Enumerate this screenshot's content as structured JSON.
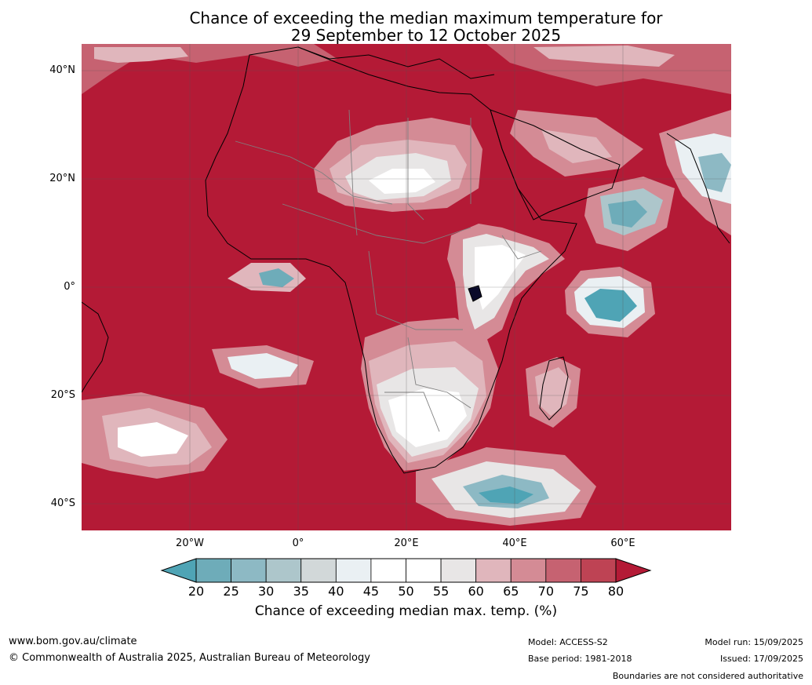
{
  "title_line1": "Chance of exceeding the median maximum temperature for",
  "title_line2": "29 September to 12 October 2025",
  "map": {
    "lat_labels": [
      "40°N",
      "20°N",
      "0°",
      "20°S",
      "40°S"
    ],
    "lon_labels": [
      "20°W",
      "0°",
      "20°E",
      "40°E",
      "60°E"
    ],
    "background_color": "#b41a36"
  },
  "colorbar": {
    "ticks": [
      "20",
      "25",
      "30",
      "35",
      "40",
      "45",
      "50",
      "55",
      "60",
      "65",
      "70",
      "75",
      "80"
    ],
    "colors": [
      "#4fa4b5",
      "#6eacb9",
      "#8db9c4",
      "#adc6cb",
      "#d2d8d9",
      "#eaf0f3",
      "#ffffff",
      "#ffffff",
      "#e8e6e6",
      "#e0b6bc",
      "#d48b95",
      "#c66271",
      "#be4354",
      "#b41a36"
    ],
    "label": "Chance of exceeding median max. temp. (%)"
  },
  "footer": {
    "url": "www.bom.gov.au/climate",
    "copyright": "© Commonwealth of Australia 2025, Australian Bureau of Meteorology",
    "model": "Model: ACCESS-S2",
    "base_period": "Base period: 1981-2018",
    "model_run": "Model run: 15/09/2025",
    "issued": "Issued: 17/09/2025",
    "disclaimer": "Boundaries are not considered authoritative"
  }
}
